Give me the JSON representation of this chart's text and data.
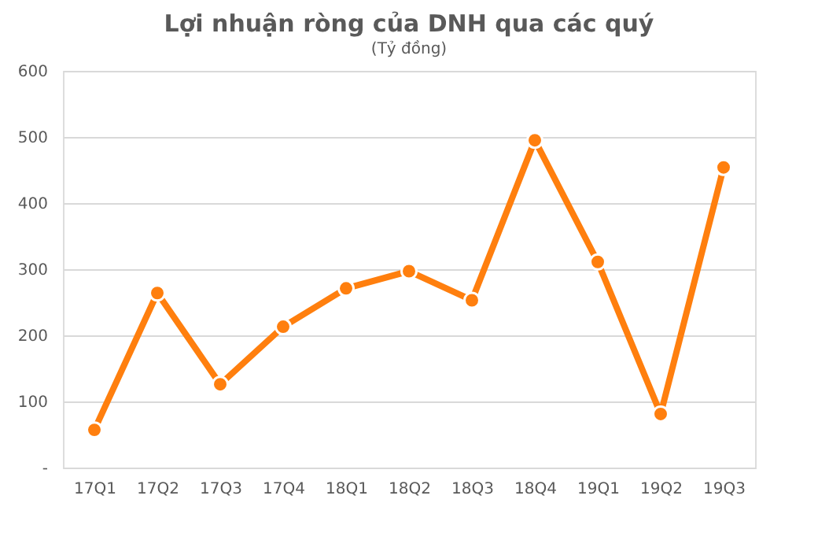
{
  "chart_data": {
    "type": "line",
    "title": "Lợi nhuận ròng của DNH qua các quý",
    "subtitle": "(Tỷ đồng)",
    "categories": [
      "17Q1",
      "17Q2",
      "17Q3",
      "17Q4",
      "18Q1",
      "18Q2",
      "18Q3",
      "18Q4",
      "19Q1",
      "19Q2",
      "19Q3"
    ],
    "series": [
      {
        "color": "#ff7f0e",
        "values": [
          57,
          264,
          126,
          213,
          271,
          297,
          253,
          495,
          311,
          81,
          454
        ]
      }
    ],
    "ylim": [
      0,
      600
    ],
    "yticks": [
      {
        "value": 0,
        "label": "-"
      },
      100,
      200,
      300,
      400,
      500,
      600
    ],
    "grid": "y",
    "marker": "circle",
    "line_style": "solid",
    "legend": false
  }
}
